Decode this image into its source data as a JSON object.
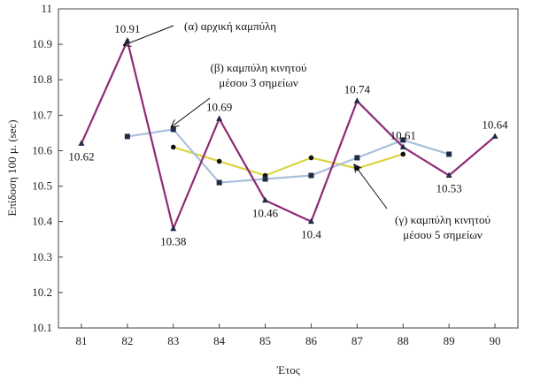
{
  "chart_data": {
    "type": "line",
    "xlabel": "Έτος",
    "ylabel": "Επίδοση 100 μ. (sec)",
    "xlim": [
      80.5,
      90.5
    ],
    "ylim": [
      10.1,
      11
    ],
    "x_ticks": [
      81,
      82,
      83,
      84,
      85,
      86,
      87,
      88,
      89,
      90
    ],
    "y_ticks": [
      10.1,
      10.2,
      10.3,
      10.4,
      10.5,
      10.6,
      10.7,
      10.8,
      10.9,
      11
    ],
    "y_tick_labels": [
      "10.1",
      "10.2",
      "10.3",
      "10.4",
      "10.5",
      "10.6",
      "10.7",
      "10.8",
      "10.9",
      "11"
    ],
    "grid": false,
    "series": [
      {
        "key": "original",
        "color": "#8e2a77",
        "marker": "triangle",
        "x": [
          81,
          82,
          83,
          84,
          85,
          86,
          87,
          88,
          89,
          90
        ],
        "y": [
          10.62,
          10.91,
          10.38,
          10.69,
          10.46,
          10.4,
          10.74,
          10.61,
          10.53,
          10.64
        ]
      },
      {
        "key": "ma3",
        "color": "#a9bfdc",
        "marker": "square",
        "x": [
          82,
          83,
          84,
          85,
          86,
          87,
          88,
          89
        ],
        "y": [
          10.64,
          10.66,
          10.51,
          10.52,
          10.53,
          10.58,
          10.63,
          10.59
        ]
      },
      {
        "key": "ma5",
        "color": "#dbd53f",
        "marker": "circle",
        "x": [
          83,
          84,
          85,
          86,
          87,
          88
        ],
        "y": [
          10.61,
          10.57,
          10.53,
          10.58,
          10.55,
          10.59
        ]
      }
    ],
    "data_labels": [
      {
        "text": "10.62",
        "x": 81,
        "y": 10.62,
        "pos": "below"
      },
      {
        "text": "10.91",
        "x": 82,
        "y": 10.91,
        "pos": "above"
      },
      {
        "text": "10.38",
        "x": 83,
        "y": 10.38,
        "pos": "below"
      },
      {
        "text": "10.69",
        "x": 84,
        "y": 10.69,
        "pos": "above"
      },
      {
        "text": "10.46",
        "x": 85,
        "y": 10.46,
        "pos": "below"
      },
      {
        "text": "10.4",
        "x": 86,
        "y": 10.4,
        "pos": "below"
      },
      {
        "text": "10.74",
        "x": 87,
        "y": 10.74,
        "pos": "above"
      },
      {
        "text": "10.61",
        "x": 88,
        "y": 10.61,
        "pos": "above"
      },
      {
        "text": "10.53",
        "x": 89,
        "y": 10.53,
        "pos": "below"
      },
      {
        "text": "10.64",
        "x": 90,
        "y": 10.64,
        "pos": "above"
      }
    ],
    "annotations": [
      {
        "lines": [
          "(α) αρχική καμπύλη"
        ],
        "target_x": 82,
        "target_y": 10.91
      },
      {
        "lines": [
          "(β) καμπύλη κινητού",
          "μέσου 3 σημείων"
        ],
        "target_x": 83,
        "target_y": 10.66
      },
      {
        "lines": [
          "(γ) καμπύλη κινητού",
          "μέσου 5 σημείων"
        ],
        "target_x": 87,
        "target_y": 10.55
      }
    ]
  }
}
